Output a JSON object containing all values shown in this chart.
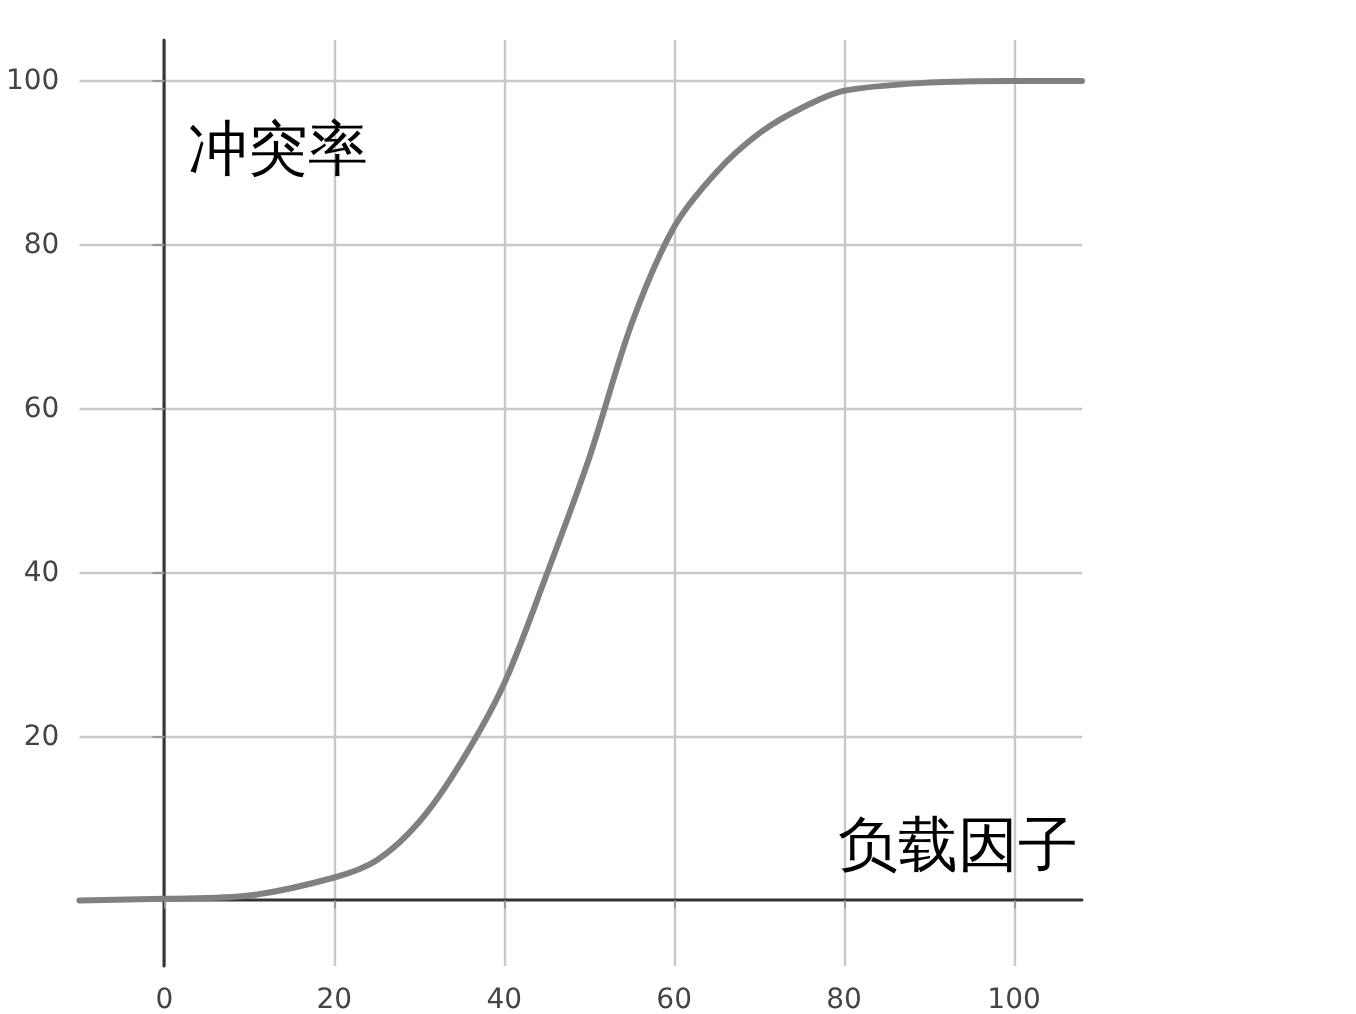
{
  "chart_data": {
    "type": "line",
    "xlabel": "负载因子",
    "ylabel": "冲突率",
    "x": [
      -10,
      0,
      10,
      20,
      25,
      30,
      35,
      40,
      45,
      50,
      55,
      60,
      65,
      70,
      75,
      80,
      90,
      100,
      108
    ],
    "series": [
      {
        "color": "#808080",
        "values": [
          0,
          0.2,
          0.6,
          2.8,
          4.9,
          9.6,
          17,
          26.5,
          39.8,
          54,
          70.4,
          82.2,
          88.9,
          93.6,
          96.7,
          98.8,
          99.8,
          100,
          100
        ]
      }
    ],
    "xlim": [
      -10,
      108
    ],
    "ylim": [
      -8,
      105
    ],
    "xticks": [
      0,
      20,
      40,
      60,
      80,
      100
    ],
    "yticks": [
      20,
      40,
      60,
      80,
      100
    ],
    "grid": true,
    "marker": "none",
    "line_style": "solid"
  }
}
